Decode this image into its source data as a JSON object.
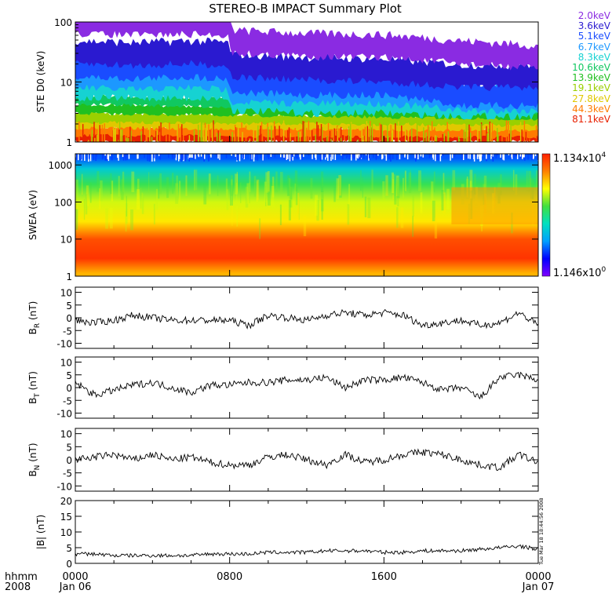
{
  "title": "STEREO-B IMPACT Summary Plot",
  "time_axis": {
    "row1_label": "hhmm",
    "row2_label": "2008",
    "ticks": [
      {
        "label": "0000",
        "sub": "Jan 06"
      },
      {
        "label": "0800",
        "sub": ""
      },
      {
        "label": "1600",
        "sub": ""
      },
      {
        "label": "0000",
        "sub": "Jan 07"
      }
    ]
  },
  "ste_legend": [
    {
      "label": "2.0keV",
      "color": "#8a2be2"
    },
    {
      "label": "3.6keV",
      "color": "#2a1ad0"
    },
    {
      "label": "5.1keV",
      "color": "#1a4cff"
    },
    {
      "label": "6.7keV",
      "color": "#1c98ff"
    },
    {
      "label": "8.3keV",
      "color": "#16d2d2"
    },
    {
      "label": "10.6keV",
      "color": "#10c860"
    },
    {
      "label": "13.9keV",
      "color": "#20c020"
    },
    {
      "label": "19.1keV",
      "color": "#9ad000"
    },
    {
      "label": "27.8keV",
      "color": "#e0c800"
    },
    {
      "label": "44.3keV",
      "color": "#ff7a00"
    },
    {
      "label": "81.1keV",
      "color": "#e82000"
    }
  ],
  "colorbar": {
    "max_label": "1.134x10",
    "max_exp": "4",
    "min_label": "1.146x10",
    "min_exp": "0",
    "colors": [
      "#8000ff",
      "#0000ff",
      "#00a0ff",
      "#00e0c0",
      "#40e040",
      "#ffff00",
      "#ff8000",
      "#ff2000"
    ]
  },
  "side_stamp": "Tue Mar 18 18:44:56 2008",
  "chart_data": [
    {
      "type": "line",
      "panel": "ste",
      "ylabel": "STE D0 (keV)",
      "yscale": "log",
      "ylim": [
        1,
        100
      ],
      "yticks": [
        "1",
        "10",
        "100"
      ],
      "xlim_hours": [
        0,
        24
      ],
      "series": [
        {
          "name": "2.0keV",
          "x_hours": [
            0,
            3,
            6,
            7.9,
            8.1,
            12,
            16,
            20,
            24
          ],
          "values": [
            95,
            90,
            92,
            90,
            45,
            40,
            38,
            30,
            25
          ]
        },
        {
          "name": "3.6keV",
          "x_hours": [
            0,
            3,
            6,
            7.9,
            8.1,
            12,
            16,
            20,
            24
          ],
          "values": [
            30,
            28,
            30,
            28,
            18,
            16,
            15,
            12,
            12
          ]
        },
        {
          "name": "5.1keV",
          "x_hours": [
            0,
            3,
            6,
            7.9,
            8.1,
            12,
            16,
            20,
            24
          ],
          "values": [
            18,
            17,
            18,
            17,
            10,
            9,
            9,
            6,
            6
          ]
        },
        {
          "name": "6.7keV",
          "x_hours": [
            0,
            3,
            6,
            7.9,
            8.1,
            12,
            16,
            20,
            24
          ],
          "values": [
            12,
            11,
            12,
            11,
            7,
            6.5,
            6.5,
            5,
            5
          ]
        },
        {
          "name": "8.3keV",
          "x_hours": [
            0,
            3,
            6,
            7.9,
            8.1,
            12,
            16,
            20,
            24
          ],
          "values": [
            8,
            8,
            8,
            8,
            5,
            4.5,
            4.5,
            4,
            4
          ]
        },
        {
          "name": "10.6keV",
          "x_hours": [
            0,
            24
          ],
          "values": [
            5,
            3.5
          ]
        },
        {
          "name": "13.9keV",
          "x_hours": [
            0,
            24
          ],
          "values": [
            3.5,
            2.8
          ]
        },
        {
          "name": "19.1keV",
          "x_hours": [
            0,
            24
          ],
          "values": [
            2.5,
            2.2
          ]
        },
        {
          "name": "27.8keV",
          "x_hours": [
            0,
            24
          ],
          "values": [
            2,
            1.8
          ]
        },
        {
          "name": "44.3keV",
          "x_hours": [
            0,
            24
          ],
          "values": [
            1.5,
            1.4
          ]
        },
        {
          "name": "81.1keV",
          "x_hours": [
            0,
            24
          ],
          "values": [
            1.2,
            1.2
          ]
        }
      ]
    },
    {
      "type": "heatmap",
      "panel": "swea",
      "ylabel": "SWEA (eV)",
      "yscale": "log",
      "ylim": [
        1,
        2000
      ],
      "yticks": [
        "1",
        "10",
        "100",
        "1000"
      ],
      "xlim_hours": [
        0,
        24
      ],
      "profile": [
        {
          "energy_ev": 1500,
          "level": 0.22
        },
        {
          "energy_ev": 800,
          "level": 0.38
        },
        {
          "energy_ev": 300,
          "level": 0.55
        },
        {
          "energy_ev": 100,
          "level": 0.68
        },
        {
          "energy_ev": 30,
          "level": 0.74
        },
        {
          "energy_ev": 10,
          "level": 0.93
        },
        {
          "energy_ev": 3,
          "level": 0.97
        },
        {
          "energy_ev": 1.2,
          "level": 0.8
        }
      ]
    },
    {
      "type": "line",
      "panel": "br",
      "ylabel": "B",
      "ysub": "R",
      "yunit": " (nT)",
      "ylim": [
        -12,
        12
      ],
      "yticks": [
        "10",
        "5",
        "0",
        "-5",
        "-10"
      ],
      "ytick_values": [
        10,
        5,
        0,
        -5,
        -10
      ],
      "x_hours": [
        0,
        1,
        2,
        3,
        4,
        5,
        6,
        7,
        8,
        9,
        10,
        11,
        12,
        13,
        14,
        15,
        16,
        17,
        18,
        19,
        20,
        21,
        22,
        23,
        24
      ],
      "values": [
        -1,
        -2,
        -1,
        1,
        0,
        -1,
        -1,
        -1,
        -1,
        -3,
        1,
        0,
        -1,
        1,
        2,
        1,
        2,
        1,
        -3,
        -2,
        -1,
        -3,
        -2,
        2,
        -3
      ]
    },
    {
      "type": "line",
      "panel": "bt",
      "ylabel": "B",
      "ysub": "T",
      "yunit": " (nT)",
      "ylim": [
        -12,
        12
      ],
      "yticks": [
        "10",
        "5",
        "0",
        "-5",
        "-10"
      ],
      "ytick_values": [
        10,
        5,
        0,
        -5,
        -10
      ],
      "x_hours": [
        0,
        1,
        2,
        3,
        4,
        5,
        6,
        7,
        8,
        9,
        10,
        11,
        12,
        13,
        14,
        15,
        16,
        17,
        18,
        19,
        20,
        21,
        22,
        23,
        24
      ],
      "values": [
        2,
        -3,
        -1,
        1,
        2,
        0,
        -2,
        1,
        1,
        2,
        2,
        3,
        3,
        4,
        0,
        3,
        3,
        4,
        2,
        -1,
        0,
        -4,
        4,
        5,
        3
      ]
    },
    {
      "type": "line",
      "panel": "bn",
      "ylabel": "B",
      "ysub": "N",
      "yunit": " (nT)",
      "ylim": [
        -12,
        12
      ],
      "yticks": [
        "10",
        "5",
        "0",
        "-5",
        "-10"
      ],
      "ytick_values": [
        10,
        5,
        0,
        -5,
        -10
      ],
      "x_hours": [
        0,
        1,
        2,
        3,
        4,
        5,
        6,
        7,
        8,
        9,
        10,
        11,
        12,
        13,
        14,
        15,
        16,
        17,
        18,
        19,
        20,
        21,
        22,
        23,
        24
      ],
      "values": [
        0,
        1,
        2,
        0,
        2,
        0,
        1,
        -1,
        -2,
        -2,
        1,
        2,
        0,
        -2,
        2,
        -1,
        0,
        2,
        3,
        2,
        0,
        -2,
        -3,
        2,
        -1
      ]
    },
    {
      "type": "line",
      "panel": "bmag",
      "ylabel": "|B| (nT)",
      "ylim": [
        0,
        20
      ],
      "yticks": [
        "20",
        "15",
        "10",
        "5",
        "0"
      ],
      "ytick_values": [
        20,
        15,
        10,
        5,
        0
      ],
      "x_hours": [
        0,
        1,
        2,
        3,
        4,
        5,
        6,
        7,
        8,
        9,
        10,
        11,
        12,
        13,
        14,
        15,
        16,
        17,
        18,
        19,
        20,
        21,
        22,
        23,
        24
      ],
      "values": [
        3,
        3,
        2.5,
        2.5,
        2.5,
        2.5,
        2.5,
        3,
        3,
        3,
        3.5,
        3.5,
        3.5,
        4,
        4,
        4,
        3.5,
        3.5,
        4,
        4,
        4,
        4.5,
        5,
        5.5,
        4.5
      ]
    }
  ]
}
